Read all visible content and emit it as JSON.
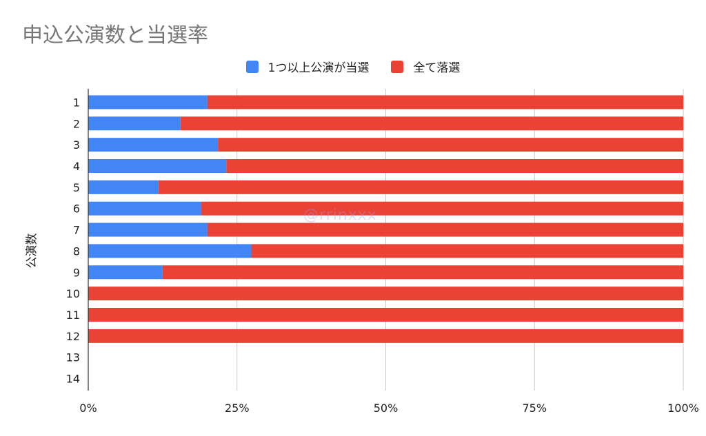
{
  "chart_data": {
    "type": "bar",
    "orientation": "horizontal",
    "stacked": "percent",
    "title": "申込公演数と当選率",
    "ylabel": "公演数",
    "xlabel": "",
    "categories": [
      "1",
      "2",
      "3",
      "4",
      "5",
      "6",
      "7",
      "8",
      "9",
      "10",
      "11",
      "12",
      "13",
      "14"
    ],
    "x_ticks": [
      "0%",
      "25%",
      "50%",
      "75%",
      "100%"
    ],
    "xlim": [
      0,
      100
    ],
    "legend_position": "top",
    "grid": true,
    "series": [
      {
        "name": "1つ以上公演が当選",
        "color": "#4285f4",
        "values": [
          20,
          15.5,
          21.8,
          23.2,
          11.8,
          19,
          20,
          27.4,
          12.5,
          0,
          0,
          0,
          null,
          null
        ]
      },
      {
        "name": "全て落選",
        "color": "#ea4335",
        "values": [
          80,
          84.5,
          78.2,
          76.8,
          88.2,
          81,
          80,
          72.6,
          87.5,
          100,
          100,
          100,
          null,
          null
        ]
      }
    ]
  },
  "watermark": "@rrinxxx"
}
